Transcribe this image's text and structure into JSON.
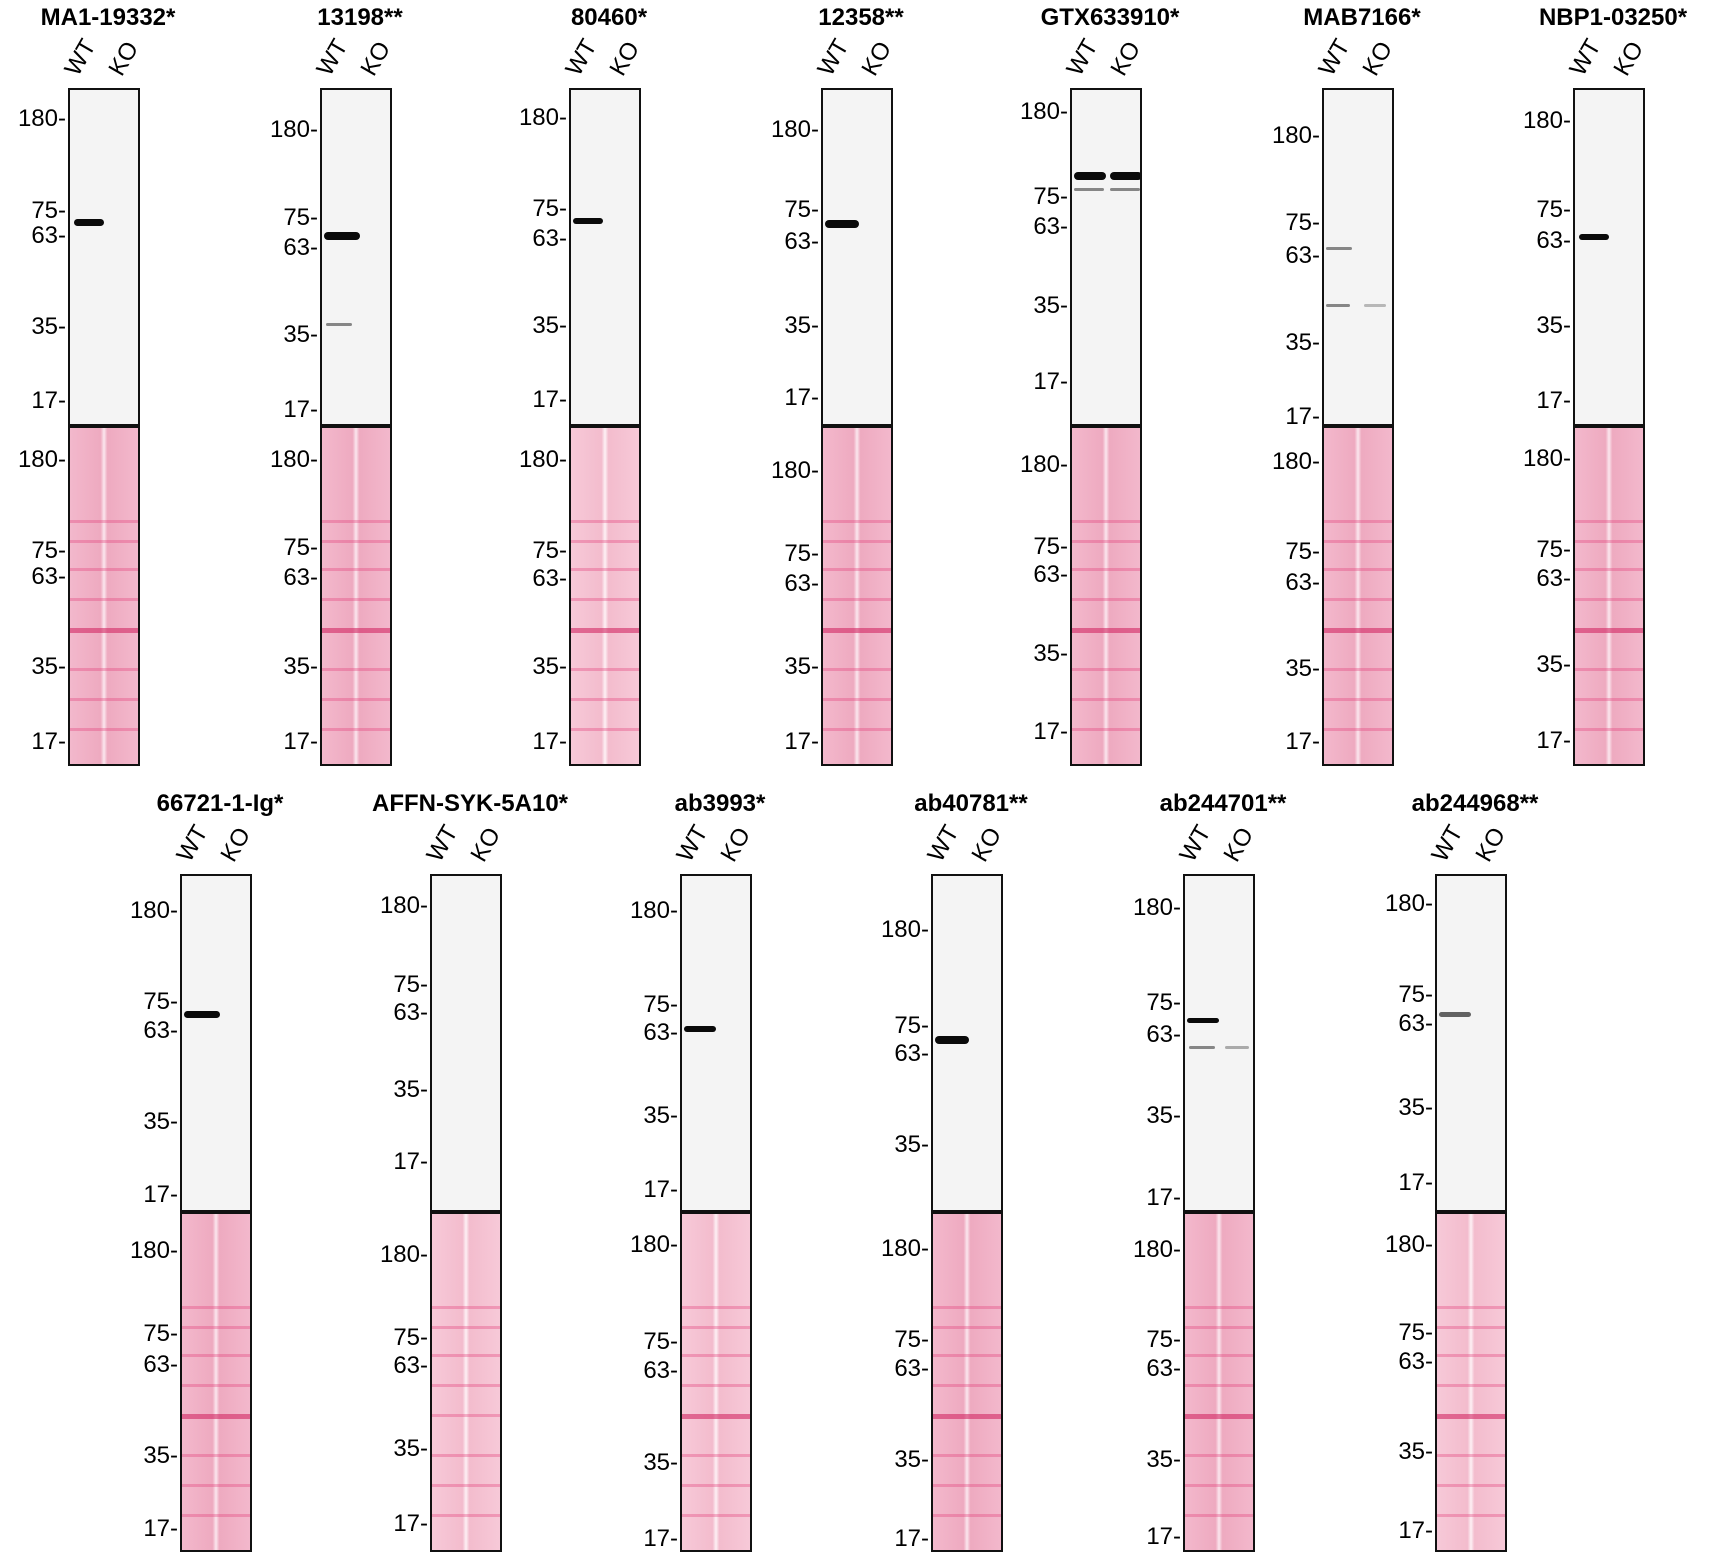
{
  "lane_labels": {
    "wt": "WT",
    "ko": "KO"
  },
  "row1": [
    {
      "title": "MA1-19332*",
      "markers": [
        "180-",
        "75-",
        "63-",
        "35-",
        "17-"
      ],
      "stain_markers": [
        "180-",
        "75-",
        "63-",
        "35-",
        "17-"
      ]
    },
    {
      "title": "13198**",
      "markers": [
        "180-",
        "75-",
        "63-",
        "35-",
        "17-"
      ],
      "stain_markers": [
        "180-",
        "75-",
        "63-",
        "35-",
        "17-"
      ]
    },
    {
      "title": "80460*",
      "markers": [
        "180-",
        "75-",
        "63-",
        "35-",
        "17-"
      ],
      "stain_markers": [
        "180-",
        "75-",
        "63-",
        "35-",
        "17-"
      ]
    },
    {
      "title": "12358**",
      "markers": [
        "180-",
        "75-",
        "63-",
        "35-",
        "17-"
      ],
      "stain_markers": [
        "180-",
        "75-",
        "63-",
        "35-",
        "17-"
      ]
    },
    {
      "title": "GTX633910*",
      "markers": [
        "180-",
        "75-",
        "63-",
        "35-",
        "17-"
      ],
      "stain_markers": [
        "180-",
        "75-",
        "63-",
        "35-",
        "17-"
      ]
    },
    {
      "title": "MAB7166*",
      "markers": [
        "180-",
        "75-",
        "63-",
        "35-",
        "17-"
      ],
      "stain_markers": [
        "180-",
        "75-",
        "63-",
        "35-",
        "17-"
      ]
    },
    {
      "title": "NBP1-03250*",
      "markers": [
        "180-",
        "75-",
        "63-",
        "35-",
        "17-"
      ],
      "stain_markers": [
        "180-",
        "75-",
        "63-",
        "35-",
        "17-"
      ]
    }
  ],
  "row2": [
    {
      "title": "66721-1-Ig*",
      "markers": [
        "180-",
        "75-",
        "63-",
        "35-",
        "17-"
      ],
      "stain_markers": [
        "180-",
        "75-",
        "63-",
        "35-",
        "17-"
      ]
    },
    {
      "title": "AFFN-SYK-5A10*",
      "markers": [
        "180-",
        "75-",
        "63-",
        "35-",
        "17-"
      ],
      "stain_markers": [
        "180-",
        "75-",
        "63-",
        "35-",
        "17-"
      ]
    },
    {
      "title": "ab3993*",
      "markers": [
        "180-",
        "75-",
        "63-",
        "35-",
        "17-"
      ],
      "stain_markers": [
        "180-",
        "75-",
        "63-",
        "35-",
        "17-"
      ]
    },
    {
      "title": "ab40781**",
      "markers": [
        "180-",
        "75-",
        "63-",
        "35-"
      ],
      "stain_markers": [
        "180-",
        "75-",
        "63-",
        "35-",
        "17-"
      ]
    },
    {
      "title": "ab244701**",
      "markers": [
        "180-",
        "75-",
        "63-",
        "35-",
        "17-"
      ],
      "stain_markers": [
        "180-",
        "75-",
        "63-",
        "35-",
        "17-"
      ]
    },
    {
      "title": "ab244968**",
      "markers": [
        "180-",
        "75-",
        "63-",
        "35-",
        "17-"
      ],
      "stain_markers": [
        "180-",
        "75-",
        "63-",
        "35-",
        "17-"
      ]
    }
  ]
}
